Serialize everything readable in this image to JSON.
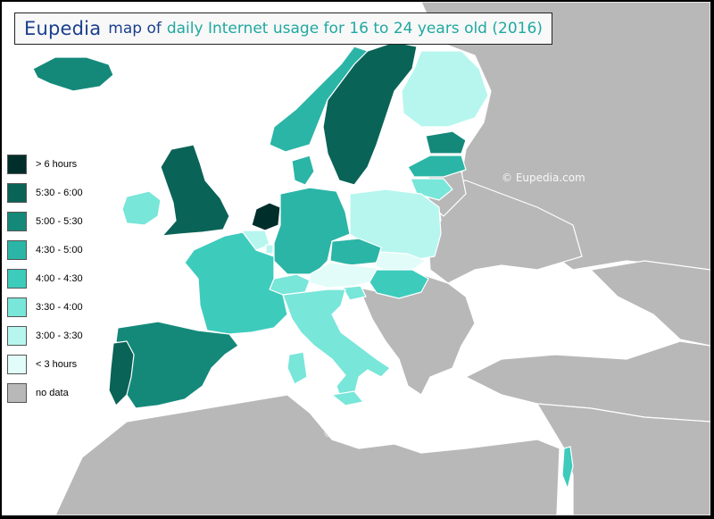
{
  "title": {
    "brand": "Eupedia",
    "mid": "map of",
    "rest": "daily Internet usage for 16 to 24 years old (2016)"
  },
  "watermarks": [
    "©  Eupedia.com",
    "©  Eupedia.com"
  ],
  "legend": [
    {
      "label": "> 6 hours",
      "color": "#002e2b"
    },
    {
      "label": "5:30 - 6:00",
      "color": "#0a6357"
    },
    {
      "label": "5:00 - 5:30",
      "color": "#14897a"
    },
    {
      "label": "4:30 - 5:00",
      "color": "#2bb5a6"
    },
    {
      "label": "4:00 - 4:30",
      "color": "#3dcbbc"
    },
    {
      "label": "3:30 - 4:00",
      "color": "#78e6d9"
    },
    {
      "label": "3:00 - 3:30",
      "color": "#b6f6ef"
    },
    {
      "label": "< 3 hours",
      "color": "#e2fcf9"
    },
    {
      "label": "no data",
      "color": "#b8b8b8"
    }
  ],
  "colors": {
    "no_data": "#b8b8b8",
    "sea": "#ffffff"
  },
  "regions": [
    {
      "name": "Netherlands",
      "category": "> 6 hours"
    },
    {
      "name": "Sweden",
      "category": "5:30 - 6:00"
    },
    {
      "name": "United Kingdom",
      "category": "5:30 - 6:00"
    },
    {
      "name": "Portugal",
      "category": "5:30 - 6:00"
    },
    {
      "name": "Iceland",
      "category": "5:00 - 5:30"
    },
    {
      "name": "Spain",
      "category": "5:00 - 5:30"
    },
    {
      "name": "Estonia",
      "category": "5:00 - 5:30"
    },
    {
      "name": "Norway",
      "category": "4:30 - 5:00"
    },
    {
      "name": "Denmark",
      "category": "4:30 - 5:00"
    },
    {
      "name": "Germany",
      "category": "4:30 - 5:00"
    },
    {
      "name": "Czech Republic",
      "category": "4:30 - 5:00"
    },
    {
      "name": "Latvia",
      "category": "4:30 - 5:00"
    },
    {
      "name": "France",
      "category": "4:00 - 4:30"
    },
    {
      "name": "Hungary",
      "category": "4:00 - 4:30"
    },
    {
      "name": "Israel",
      "category": "4:00 - 4:30"
    },
    {
      "name": "Ireland",
      "category": "3:30 - 4:00"
    },
    {
      "name": "Lithuania",
      "category": "3:30 - 4:00"
    },
    {
      "name": "Switzerland",
      "category": "3:30 - 4:00"
    },
    {
      "name": "Italy",
      "category": "3:30 - 4:00"
    },
    {
      "name": "Slovenia",
      "category": "3:30 - 4:00"
    },
    {
      "name": "Finland",
      "category": "3:00 - 3:30"
    },
    {
      "name": "Poland",
      "category": "3:00 - 3:30"
    },
    {
      "name": "Belgium",
      "category": "3:00 - 3:30"
    },
    {
      "name": "Luxembourg",
      "category": "3:00 - 3:30"
    },
    {
      "name": "Austria",
      "category": "< 3 hours"
    },
    {
      "name": "Slovakia",
      "category": "< 3 hours"
    }
  ]
}
